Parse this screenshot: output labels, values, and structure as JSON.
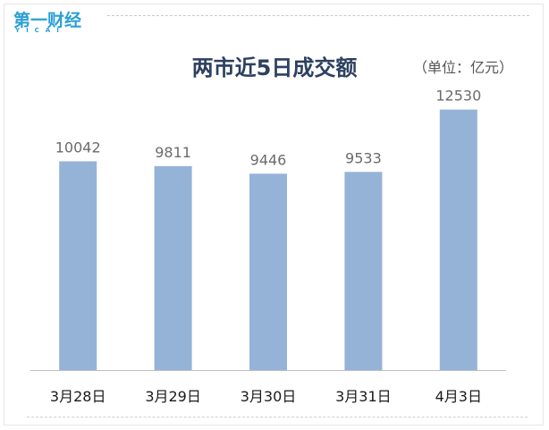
{
  "logo": {
    "main": "第一财经",
    "sub": "YICAI"
  },
  "unit": "（单位：亿元）",
  "colors": {
    "bar": "#95b3d7",
    "title": "#2d4060",
    "logo": "#2a9fd6",
    "value_label": "#6b6b6b",
    "axis": "#bfbfbf"
  },
  "chart_data": {
    "type": "bar",
    "title": "两市近5日成交额",
    "categories": [
      "3月28日",
      "3月29日",
      "3月30日",
      "3月31日",
      "4月3日"
    ],
    "values": [
      10042,
      9811,
      9446,
      9533,
      12530
    ],
    "ylim": [
      0,
      13500
    ],
    "grid": false,
    "legend": "none"
  }
}
